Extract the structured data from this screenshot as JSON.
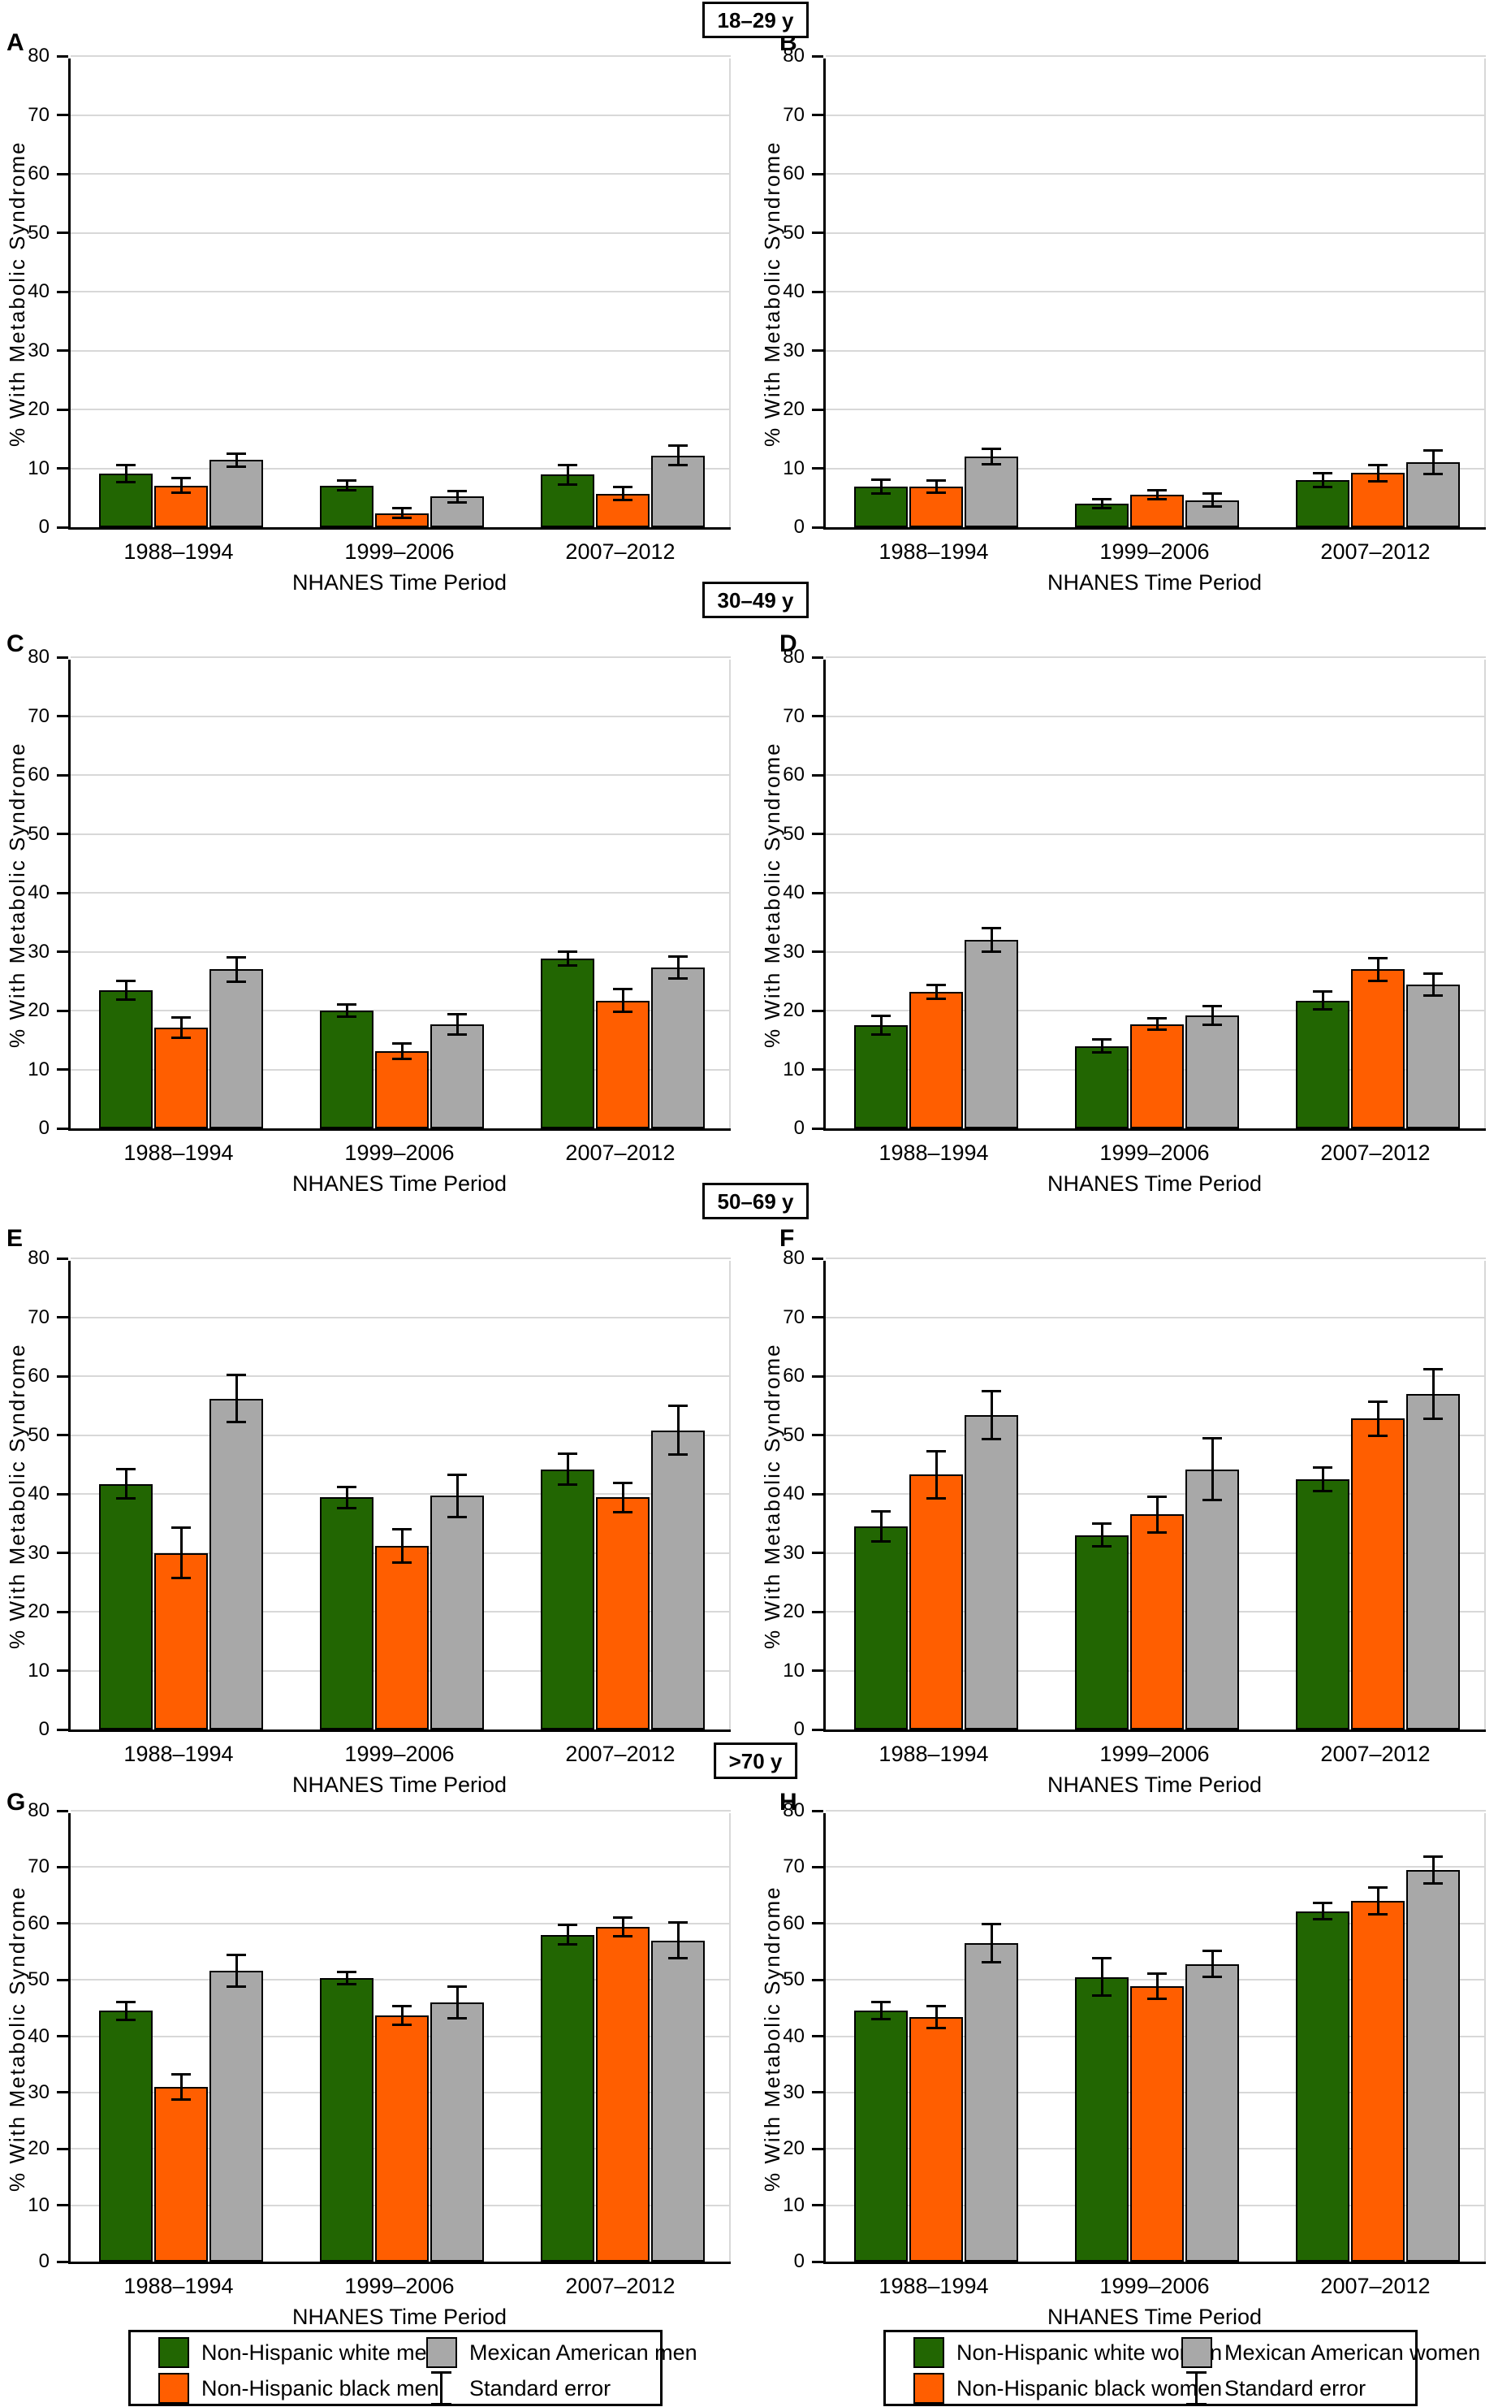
{
  "figure": {
    "sections": [
      {
        "title": "18–29 y"
      },
      {
        "title": "30–49 y"
      },
      {
        "title": "50–69 y"
      },
      {
        "title": ">70 y"
      }
    ],
    "colors": {
      "green": "#226602",
      "orange": "#ff5e00",
      "gray": "#a8a8a8"
    }
  },
  "chart_data": [
    {
      "type": "bar",
      "panel": "A",
      "age_group": "18–29 y",
      "ylabel": "% With Metabolic Syndrome",
      "xlabel": "NHANES Time Period",
      "ylim": [
        0,
        80
      ],
      "ystep": 10,
      "grid": true,
      "categories": [
        "1988–1994",
        "1999–2006",
        "2007–2012"
      ],
      "series": [
        {
          "name": "Non-Hispanic white men",
          "color": "green",
          "values": [
            9.1,
            7.1,
            8.9
          ],
          "errors": [
            1.4,
            0.8,
            1.6
          ]
        },
        {
          "name": "Non-Hispanic black men",
          "color": "orange",
          "values": [
            7.1,
            2.4,
            5.7
          ],
          "errors": [
            1.2,
            0.8,
            1.1
          ]
        },
        {
          "name": "Mexican American men",
          "color": "gray",
          "values": [
            11.4,
            5.2,
            12.2
          ],
          "errors": [
            1.1,
            1.0,
            1.7
          ]
        }
      ]
    },
    {
      "type": "bar",
      "panel": "B",
      "age_group": "18–29 y",
      "ylabel": "% With Metabolic Syndrome",
      "xlabel": "NHANES Time Period",
      "ylim": [
        0,
        80
      ],
      "ystep": 10,
      "grid": true,
      "categories": [
        "1988–1994",
        "1999–2006",
        "2007–2012"
      ],
      "series": [
        {
          "name": "Non-Hispanic white women",
          "color": "green",
          "values": [
            6.9,
            4.0,
            8.0
          ],
          "errors": [
            1.2,
            0.7,
            1.2
          ]
        },
        {
          "name": "Non-Hispanic black women",
          "color": "orange",
          "values": [
            6.9,
            5.5,
            9.2
          ],
          "errors": [
            1.0,
            0.8,
            1.4
          ]
        },
        {
          "name": "Mexican American women",
          "color": "gray",
          "values": [
            12.0,
            4.6,
            11.1
          ],
          "errors": [
            1.3,
            1.1,
            2.0
          ]
        }
      ]
    },
    {
      "type": "bar",
      "panel": "C",
      "age_group": "30–49 y",
      "ylabel": "% With Metabolic Syndrome",
      "xlabel": "NHANES Time Period",
      "ylim": [
        0,
        80
      ],
      "ystep": 10,
      "grid": true,
      "categories": [
        "1988–1994",
        "1999–2006",
        "2007–2012"
      ],
      "series": [
        {
          "name": "Non-Hispanic white men",
          "color": "green",
          "values": [
            23.5,
            20.0,
            28.8
          ],
          "errors": [
            1.6,
            1.1,
            1.2
          ]
        },
        {
          "name": "Non-Hispanic black men",
          "color": "orange",
          "values": [
            17.1,
            13.1,
            21.7
          ],
          "errors": [
            1.7,
            1.3,
            1.9
          ]
        },
        {
          "name": "Mexican American men",
          "color": "gray",
          "values": [
            27.0,
            17.7,
            27.3
          ],
          "errors": [
            2.1,
            1.7,
            1.9
          ]
        }
      ]
    },
    {
      "type": "bar",
      "panel": "D",
      "age_group": "30–49 y",
      "ylabel": "% With Metabolic Syndrome",
      "xlabel": "NHANES Time Period",
      "ylim": [
        0,
        80
      ],
      "ystep": 10,
      "grid": true,
      "categories": [
        "1988–1994",
        "1999–2006",
        "2007–2012"
      ],
      "series": [
        {
          "name": "Non-Hispanic white women",
          "color": "green",
          "values": [
            17.5,
            14.0,
            21.7
          ],
          "errors": [
            1.6,
            1.1,
            1.5
          ]
        },
        {
          "name": "Non-Hispanic black women",
          "color": "orange",
          "values": [
            23.2,
            17.7,
            27.0
          ],
          "errors": [
            1.2,
            1.0,
            1.9
          ]
        },
        {
          "name": "Mexican American women",
          "color": "gray",
          "values": [
            32.0,
            19.2,
            24.4
          ],
          "errors": [
            2.0,
            1.6,
            1.9
          ]
        }
      ]
    },
    {
      "type": "bar",
      "panel": "E",
      "age_group": "50–69 y",
      "ylabel": "% With Metabolic Syndrome",
      "xlabel": "NHANES Time Period",
      "ylim": [
        0,
        80
      ],
      "ystep": 10,
      "grid": true,
      "categories": [
        "1988–1994",
        "1999–2006",
        "2007–2012"
      ],
      "series": [
        {
          "name": "Non-Hispanic white men",
          "color": "green",
          "values": [
            41.7,
            39.4,
            44.2
          ],
          "errors": [
            2.5,
            1.8,
            2.6
          ]
        },
        {
          "name": "Non-Hispanic black men",
          "color": "orange",
          "values": [
            30.0,
            31.2,
            39.4
          ],
          "errors": [
            4.3,
            2.8,
            2.5
          ]
        },
        {
          "name": "Mexican American men",
          "color": "gray",
          "values": [
            56.2,
            39.7,
            50.8
          ],
          "errors": [
            4.0,
            3.6,
            4.1
          ]
        }
      ]
    },
    {
      "type": "bar",
      "panel": "F",
      "age_group": "50–69 y",
      "ylabel": "% With Metabolic Syndrome",
      "xlabel": "NHANES Time Period",
      "ylim": [
        0,
        80
      ],
      "ystep": 10,
      "grid": true,
      "categories": [
        "1988–1994",
        "1999–2006",
        "2007–2012"
      ],
      "series": [
        {
          "name": "Non-Hispanic white women",
          "color": "green",
          "values": [
            34.5,
            33.0,
            42.5
          ],
          "errors": [
            2.6,
            1.9,
            2.0
          ]
        },
        {
          "name": "Non-Hispanic black women",
          "color": "orange",
          "values": [
            43.3,
            36.5,
            52.8
          ],
          "errors": [
            4.0,
            3.0,
            2.9
          ]
        },
        {
          "name": "Mexican American women",
          "color": "gray",
          "values": [
            53.4,
            44.2,
            57.0
          ],
          "errors": [
            4.1,
            5.2,
            4.2
          ]
        }
      ]
    },
    {
      "type": "bar",
      "panel": "G",
      "age_group": ">70 y",
      "ylabel": "% With Metabolic Syndrome",
      "xlabel": "NHANES Time Period",
      "ylim": [
        0,
        80
      ],
      "ystep": 10,
      "grid": true,
      "categories": [
        "1988–1994",
        "1999–2006",
        "2007–2012"
      ],
      "series": [
        {
          "name": "Non-Hispanic white men",
          "color": "green",
          "values": [
            44.5,
            50.3,
            58.0
          ],
          "errors": [
            1.6,
            1.1,
            1.7
          ]
        },
        {
          "name": "Non-Hispanic black men",
          "color": "orange",
          "values": [
            31.0,
            43.7,
            59.4
          ],
          "errors": [
            2.2,
            1.7,
            1.6
          ]
        },
        {
          "name": "Mexican American men",
          "color": "gray",
          "values": [
            51.6,
            46.0,
            57.0
          ],
          "errors": [
            2.8,
            2.8,
            3.2
          ]
        }
      ]
    },
    {
      "type": "bar",
      "panel": "H",
      "age_group": ">70 y",
      "ylabel": "% With Metabolic Syndrome",
      "xlabel": "NHANES Time Period",
      "ylim": [
        0,
        80
      ],
      "ystep": 10,
      "grid": true,
      "categories": [
        "1988–1994",
        "1999–2006",
        "2007–2012"
      ],
      "series": [
        {
          "name": "Non-Hispanic white women",
          "color": "green",
          "values": [
            44.5,
            50.5,
            62.2
          ],
          "errors": [
            1.5,
            3.3,
            1.5
          ]
        },
        {
          "name": "Non-Hispanic black women",
          "color": "orange",
          "values": [
            43.4,
            48.9,
            64.0
          ],
          "errors": [
            1.9,
            2.2,
            2.4
          ]
        },
        {
          "name": "Mexican American women",
          "color": "gray",
          "values": [
            56.5,
            52.8,
            69.5
          ],
          "errors": [
            3.4,
            2.3,
            2.4
          ]
        }
      ]
    }
  ],
  "legends": [
    {
      "entries": [
        {
          "label": "Non-Hispanic white men",
          "swatch": "green"
        },
        {
          "label": "Mexican American men",
          "swatch": "gray"
        },
        {
          "label": "Non-Hispanic black men",
          "swatch": "orange"
        },
        {
          "label": "Standard error",
          "swatch": "error-bar"
        }
      ]
    },
    {
      "entries": [
        {
          "label": "Non-Hispanic white women",
          "swatch": "green"
        },
        {
          "label": "Mexican American women",
          "swatch": "gray"
        },
        {
          "label": "Non-Hispanic black women",
          "swatch": "orange"
        },
        {
          "label": "Standard error",
          "swatch": "error-bar"
        }
      ]
    }
  ]
}
